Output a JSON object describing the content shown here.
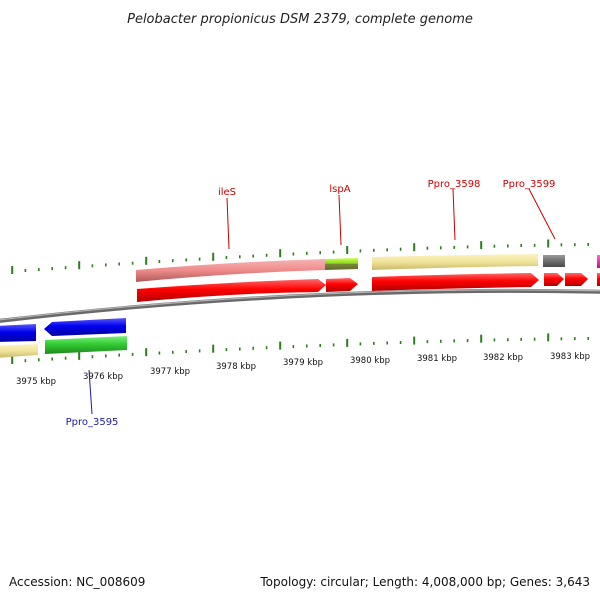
{
  "title": "Pelobacter propionicus DSM 2379, complete genome",
  "footer": {
    "accession": "Accession: NC_008609",
    "summary": "Topology: circular; Length: 4,008,000 bp; Genes: 3,643"
  },
  "colors": {
    "backbone": "#888888",
    "tick_green": "#2e7d1e",
    "label_red": "#cc0000",
    "label_blue": "#1a1aa6"
  },
  "scale": {
    "unit": "kbp",
    "ticks": [
      {
        "kbp": 3975,
        "label": "3975 kbp"
      },
      {
        "kbp": 3976,
        "label": "3976 kbp"
      },
      {
        "kbp": 3977,
        "label": "3977 kbp"
      },
      {
        "kbp": 3978,
        "label": "3978 kbp"
      },
      {
        "kbp": 3979,
        "label": "3979 kbp"
      },
      {
        "kbp": 3980,
        "label": "3980 kbp"
      },
      {
        "kbp": 3981,
        "label": "3981 kbp"
      },
      {
        "kbp": 3982,
        "label": "3982 kbp"
      },
      {
        "kbp": 3983,
        "label": "3983 kbp"
      }
    ]
  },
  "gene_labels": [
    {
      "id": "ileS",
      "text": "ileS",
      "color": "#cc0000",
      "strand": "forward"
    },
    {
      "id": "lspA",
      "text": "lspA",
      "color": "#cc0000",
      "strand": "forward"
    },
    {
      "id": "ppro_3598",
      "text": "Ppro_3598",
      "color": "#cc0000",
      "strand": "forward"
    },
    {
      "id": "ppro_3599",
      "text": "Ppro_3599",
      "color": "#cc0000",
      "strand": "forward"
    },
    {
      "id": "ppro_3595",
      "text": "Ppro_3595",
      "color": "#1a1aa6",
      "strand": "reverse"
    }
  ]
}
